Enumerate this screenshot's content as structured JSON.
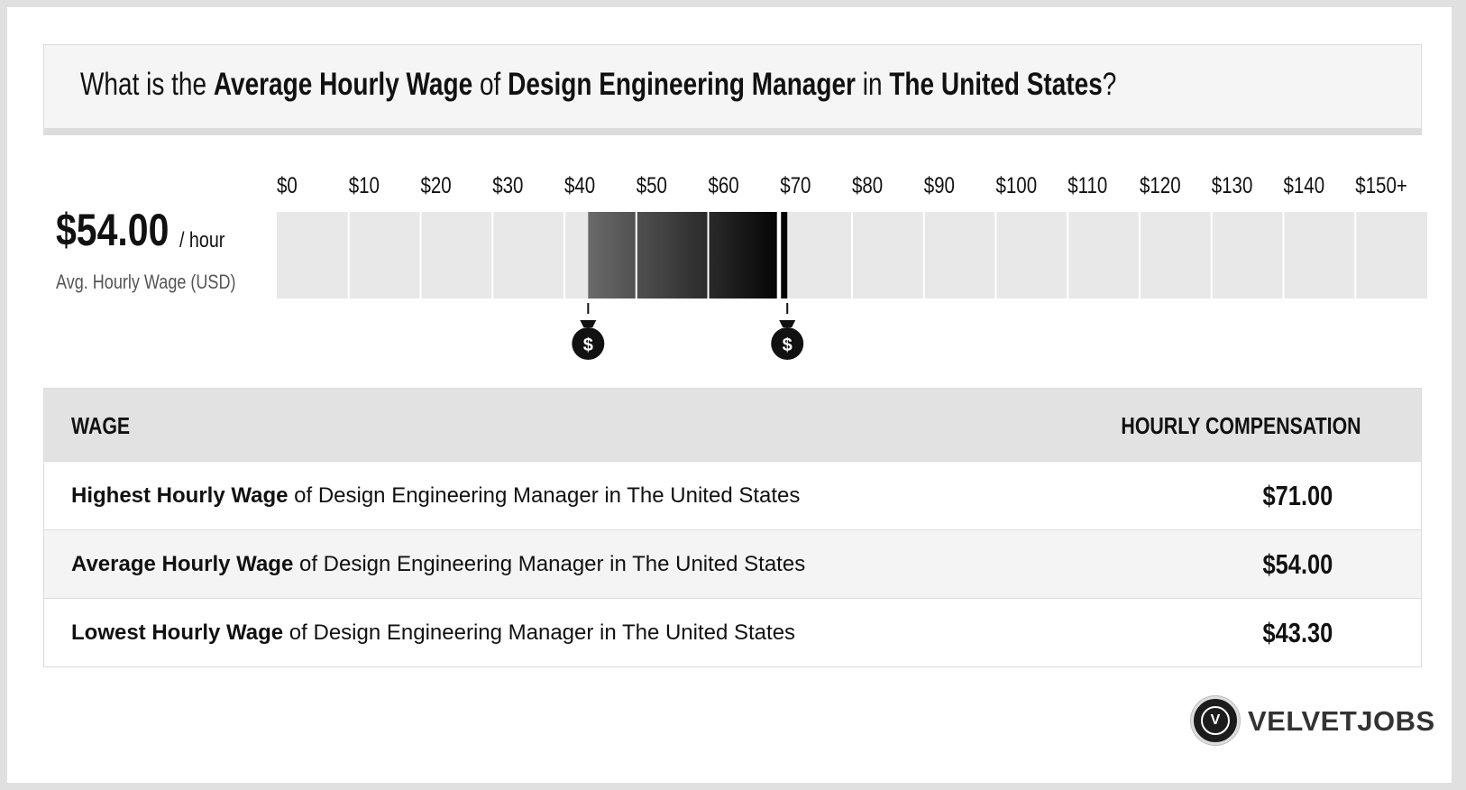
{
  "question": {
    "prefix": "What is the ",
    "measure": "Average Hourly Wage",
    "of": " of ",
    "job": "Design Engineering Manager",
    "in": " in ",
    "location": "The United States",
    "suffix": "?"
  },
  "summary": {
    "value": "$54.00",
    "unit": "/ hour",
    "label": "Avg. Hourly Wage (USD)"
  },
  "chart_data": {
    "type": "bar",
    "tick_labels": [
      "$0",
      "$10",
      "$20",
      "$30",
      "$40",
      "$50",
      "$60",
      "$70",
      "$80",
      "$90",
      "$100",
      "$110",
      "$120",
      "$130",
      "$140",
      "$150+"
    ],
    "tick_values": [
      0,
      10,
      20,
      30,
      40,
      50,
      60,
      70,
      80,
      90,
      100,
      110,
      120,
      130,
      140,
      150
    ],
    "xlim": [
      0,
      150
    ],
    "range_low": 43.3,
    "range_high": 71.0,
    "average": 54.0,
    "colors": {
      "track": "#e8e8e8",
      "range_start": "#6a6a6a",
      "range_end": "#000000",
      "marker": "#111111"
    },
    "markers": [
      {
        "value": 43.3,
        "icon": "money-bag-icon",
        "symbol": "$"
      },
      {
        "value": 71.0,
        "icon": "money-bag-icon",
        "symbol": "$"
      }
    ]
  },
  "table": {
    "headers": {
      "wage": "WAGE",
      "compensation": "HOURLY COMPENSATION"
    },
    "rows": [
      {
        "bold": "Highest Hourly Wage",
        "rest": " of Design Engineering Manager in The United States",
        "value": "$71.00"
      },
      {
        "bold": "Average Hourly Wage",
        "rest": " of Design Engineering Manager in The United States",
        "value": "$54.00"
      },
      {
        "bold": "Lowest Hourly Wage",
        "rest": " of Design Engineering Manager in The United States",
        "value": "$43.30"
      }
    ]
  },
  "brand": {
    "logo_letter": "V",
    "name": "VELVETJOBS"
  }
}
